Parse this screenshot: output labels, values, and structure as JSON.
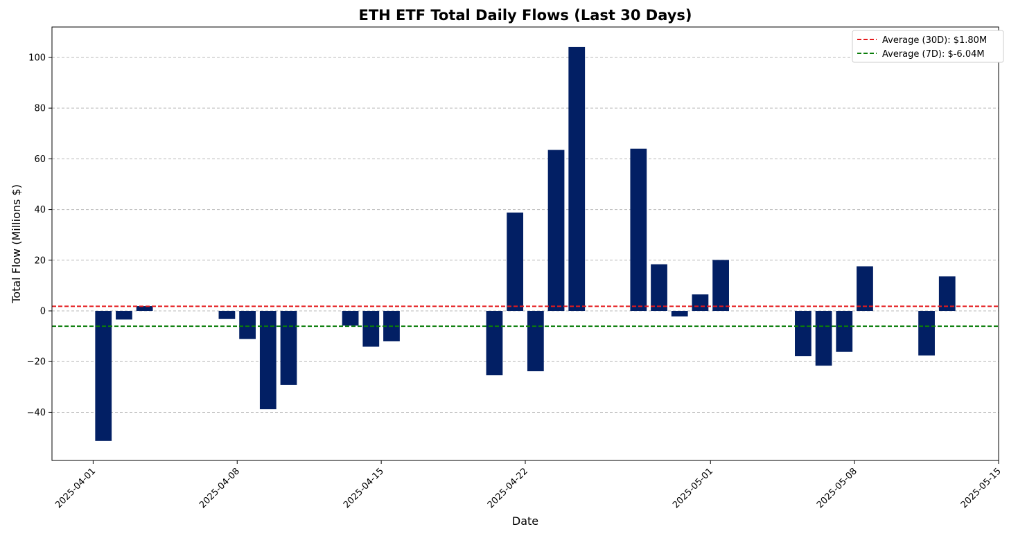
{
  "chart_data": {
    "type": "bar",
    "title": "ETH ETF Total Daily Flows (Last 30 Days)",
    "xlabel": "Date",
    "ylabel": "Total Flow (Millions $)",
    "x_tick_labels": [
      "2025-04-01",
      "2025-04-08",
      "2025-04-15",
      "2025-04-22",
      "2025-05-01",
      "2025-05-08",
      "2025-05-15"
    ],
    "y_ticks": [
      -40,
      -20,
      0,
      20,
      40,
      60,
      80,
      100
    ],
    "xlim": [
      "2025-03-31",
      "2025-05-15"
    ],
    "ylim": [
      -59,
      112
    ],
    "grid": "y-dashed",
    "bar_color": "#021f64",
    "series": [
      {
        "values": [
          {
            "x": "2025-04-02",
            "y": -51.3
          },
          {
            "x": "2025-04-03",
            "y": -3.4
          },
          {
            "x": "2025-04-04",
            "y": 1.9
          },
          {
            "x": "2025-04-08",
            "y": -3.2
          },
          {
            "x": "2025-04-09",
            "y": -11.1
          },
          {
            "x": "2025-04-10",
            "y": -38.8
          },
          {
            "x": "2025-04-11",
            "y": -29.2
          },
          {
            "x": "2025-04-14",
            "y": -5.8
          },
          {
            "x": "2025-04-15",
            "y": -14.1
          },
          {
            "x": "2025-04-16",
            "y": -12.0
          },
          {
            "x": "2025-04-21",
            "y": -25.4
          },
          {
            "x": "2025-04-22",
            "y": 38.8
          },
          {
            "x": "2025-04-23",
            "y": -23.8
          },
          {
            "x": "2025-04-24",
            "y": 63.5
          },
          {
            "x": "2025-04-25",
            "y": 104.1
          },
          {
            "x": "2025-04-28",
            "y": 64.0
          },
          {
            "x": "2025-04-29",
            "y": 18.4
          },
          {
            "x": "2025-04-30",
            "y": -2.2
          },
          {
            "x": "2025-05-01",
            "y": 6.5
          },
          {
            "x": "2025-05-02",
            "y": 20.1
          },
          {
            "x": "2025-05-06",
            "y": -17.8
          },
          {
            "x": "2025-05-07",
            "y": -21.6
          },
          {
            "x": "2025-05-08",
            "y": -16.1
          },
          {
            "x": "2025-05-09",
            "y": 17.6
          },
          {
            "x": "2025-05-12",
            "y": -17.6
          },
          {
            "x": "2025-05-13",
            "y": 13.6
          }
        ]
      }
    ],
    "reference_lines": [
      {
        "label": "Average (30D): $1.80M",
        "y": 1.8,
        "color": "#e41a1c"
      },
      {
        "label": "Average (7D): $-6.04M",
        "y": -6.04,
        "color": "#0a7d0a"
      }
    ],
    "legend_position": "top-right"
  }
}
